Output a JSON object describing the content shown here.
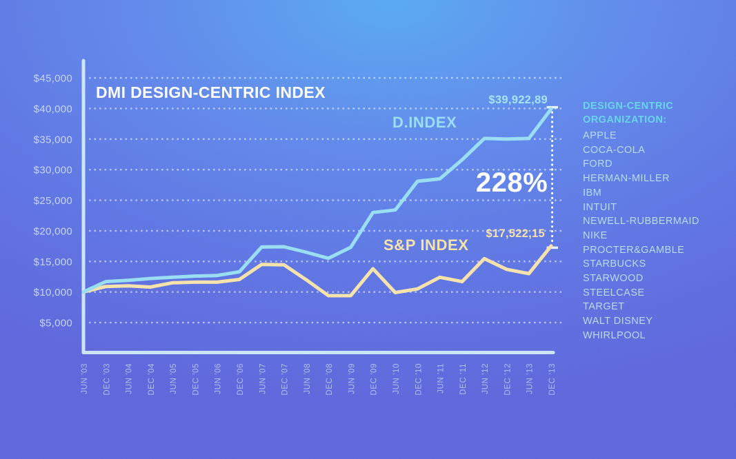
{
  "title": "DMI DESIGN-CENTRIC INDEX",
  "chart_data": {
    "type": "line",
    "title": "DMI DESIGN-CENTRIC INDEX",
    "categories": [
      "JUN '03",
      "DEC '03",
      "JUN '04",
      "DEC '04",
      "JUN '05",
      "DEC '05",
      "JUN '06",
      "DEC '06",
      "JUN '07",
      "DEC '07",
      "JUN '08",
      "DEC '08",
      "JUN '09",
      "DEC '09",
      "JUN '10",
      "DEC '10",
      "JUN '11",
      "DEC '11",
      "JUN '12",
      "DEC '12",
      "JUN '13",
      "DEC '13"
    ],
    "yticks": [
      45000,
      40000,
      35000,
      30000,
      25000,
      20000,
      15000,
      10000,
      5000
    ],
    "ytick_labels": [
      "$45,000",
      "$40,000",
      "$35,000",
      "$30,000",
      "$25,000",
      "$20,000",
      "$15,000",
      "$10,000",
      "$5,000"
    ],
    "ylim": [
      0,
      47500
    ],
    "grid": "horizontal-dashed",
    "legend_position": "inline-labels",
    "series": [
      {
        "name": "D.INDEX",
        "color": "#9adef4",
        "final_value_label": "$39,922,89",
        "values": [
          10000,
          11700,
          11900,
          12200,
          12400,
          12600,
          12700,
          13300,
          17350,
          17400,
          16500,
          15500,
          17300,
          23000,
          23400,
          28100,
          28500,
          31600,
          35100,
          35000,
          35100,
          39922.89
        ]
      },
      {
        "name": "S&P INDEX",
        "color": "#f6e2ab",
        "final_value_label": "$17,522,15",
        "values": [
          10000,
          10900,
          11000,
          10800,
          11500,
          11600,
          11600,
          12050,
          14500,
          14450,
          12000,
          9400,
          9400,
          13800,
          9900,
          10500,
          12400,
          11700,
          15450,
          13700,
          13000,
          17522.15
        ]
      }
    ],
    "annotations": {
      "growth_pct": "228%"
    }
  },
  "right_panel": {
    "heading": [
      "DESIGN-CENTRIC",
      "ORGANIZATION:"
    ],
    "organizations": [
      "APPLE",
      "COCA-COLA",
      "FORD",
      "HERMAN-MILLER",
      "IBM",
      "INTUIT",
      "NEWELL-RUBBERMAID",
      "NIKE",
      "PROCTER&GAMBLE",
      "STARBUCKS",
      "STARWOOD",
      "STEELCASE",
      "TARGET",
      "WALT DISNEY",
      "WHIRLPOOL"
    ],
    "header_color": "#68d5e9",
    "item_color": "#b9dcee"
  },
  "colors": {
    "background_top": "#57a9f1",
    "background_bottom": "#5c64da",
    "d_index_line": "#9adef4",
    "sp_index_line": "#f6e2ab",
    "axis": "#cbe5f7",
    "gridline": "rgba(255,255,255,0.55)",
    "title_text": "#ffffff",
    "growth_text": "#ffffff"
  }
}
